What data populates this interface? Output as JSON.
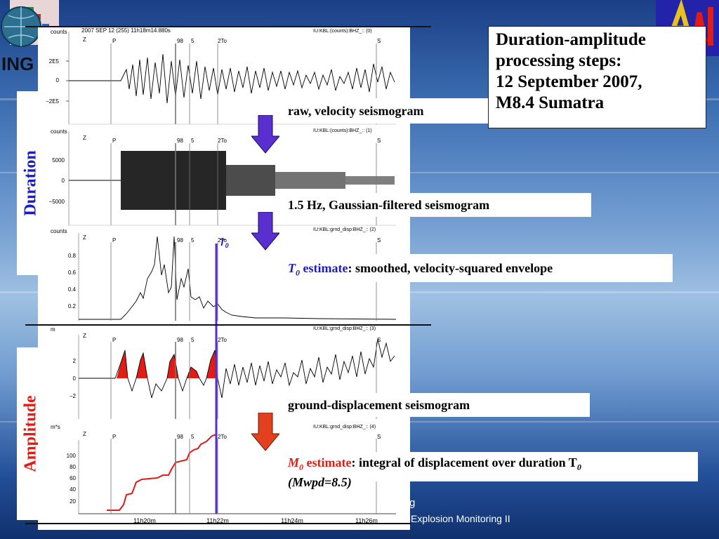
{
  "logo": {
    "text": "ING"
  },
  "side_labels": {
    "duration": "Duration",
    "amplitude": "Amplitude"
  },
  "title_box": {
    "line1": "Duration-amplitude",
    "line2": "processing steps:",
    "line3": "12 September 2007,",
    "line4": "M8.4 Sumatra"
  },
  "step_labels": {
    "raw": "raw, velocity seismogram",
    "filtered": "1.5 Hz, Gaussian-filtered seismogram",
    "t0_symbol": "T",
    "t0_sub": "0",
    "t0_word": "estimate",
    "t0_rest": ": smoothed, velocity-squared envelope",
    "disp": "ground-displacement seismogram",
    "m0_symbol": "M",
    "m0_sub": "0",
    "m0_word": "estimate",
    "m0_rest": ": integral of displacement over duration T",
    "m0_rest_sub": "0",
    "mwpd": "(Mwpd=8.5)"
  },
  "footer": {
    "line1": "g",
    "line2": "Explosion Monitoring II"
  },
  "colors": {
    "duration": "#1c1cc4",
    "amplitude": "#e01c14",
    "arrow_blue": "#5a2fd0",
    "arrow_red": "#e2401e",
    "t0_line": "#5a2fd0"
  },
  "traces": {
    "header_main": "2007 SEP 12 (255)  11h18m14.880s",
    "t1": {
      "units": "counts",
      "id": "IU:KBL:(counts):BHZ_:: (0)",
      "yticks": [
        "2E5",
        "0",
        "−2E5"
      ]
    },
    "t2": {
      "units": "counts",
      "id": "IU:KBL:(counts):BHZ_:: (1)",
      "yticks": [
        "5000",
        "0",
        "−5000"
      ]
    },
    "t3": {
      "units": "counts",
      "id": "IU:KBL:grnd_disp:BHZ_:: (2)",
      "yticks": [
        "0.8",
        "0.6",
        "0.4",
        "0.2"
      ]
    },
    "t4": {
      "units": "m",
      "id": "IU:KBL:grnd_disp:BHZ_:: (3)",
      "yticks": [
        "2",
        "0",
        "−2"
      ]
    },
    "t5": {
      "units": "m*s",
      "id": "IU:KBL:grnd_disp:BHZ_:: (4)",
      "yticks": [
        "100",
        "80",
        "60",
        "40",
        "20"
      ]
    },
    "phases": {
      "z": "Z",
      "p": "P",
      "p98": "98",
      "p5": "5",
      "to": "2To",
      "s": "S"
    },
    "t0_marker": "T",
    "t0_marker_sub": "0",
    "time_axis": [
      "11h20m",
      "11h22m",
      "11h24m",
      "11h26m"
    ]
  }
}
